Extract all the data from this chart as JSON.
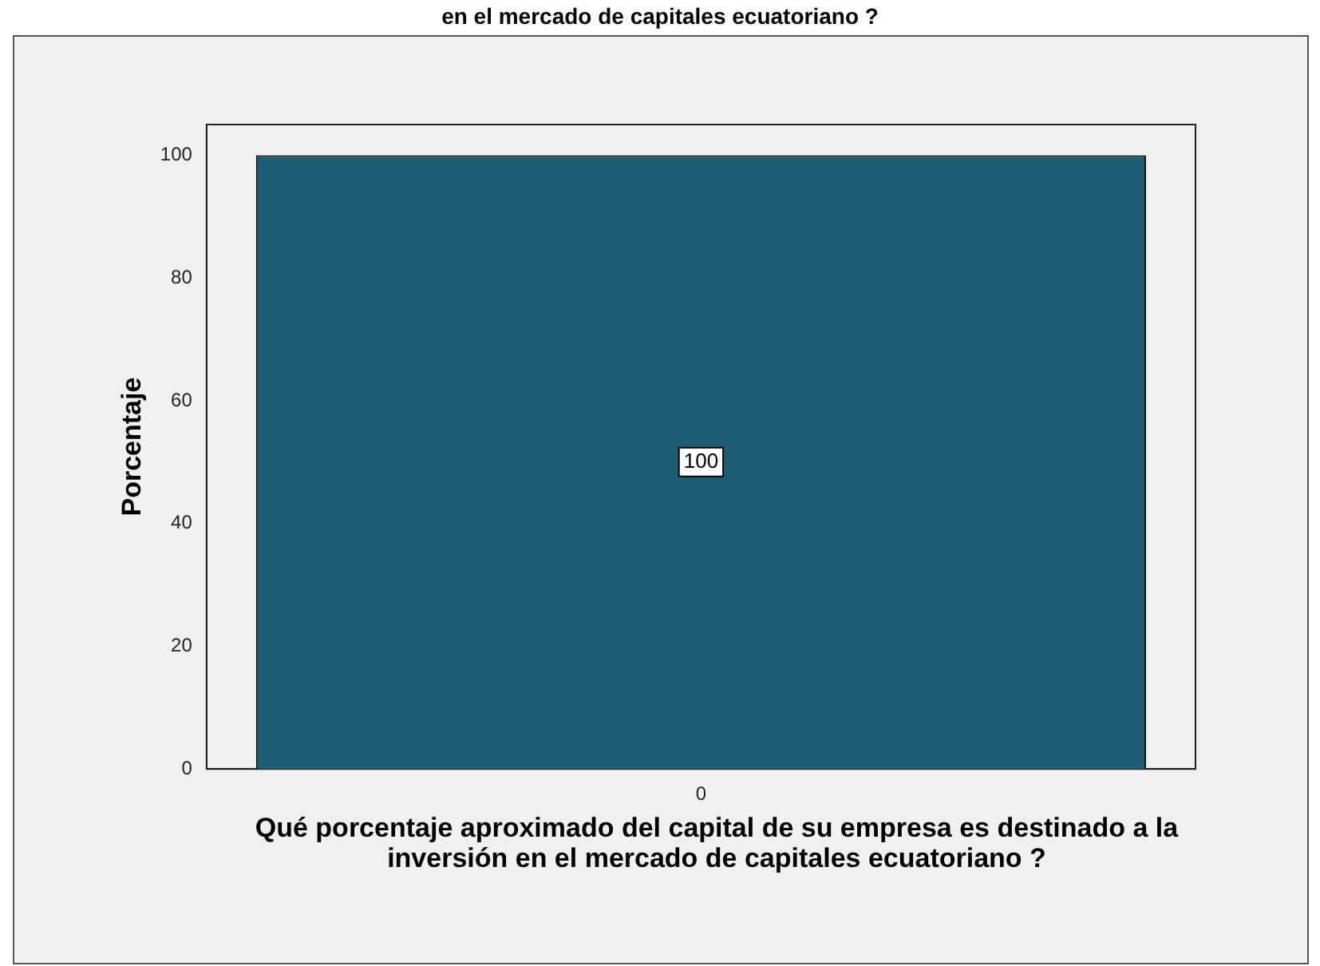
{
  "chart_data": {
    "type": "bar",
    "title": "en el mercado de capitales ecuatoriano ?",
    "xlabel": "Qué porcentaje aproximado del capital de su empresa es destinado a la inversión en el mercado de capitales ecuatoriano ?",
    "ylabel": "Porcentaje",
    "categories": [
      "0"
    ],
    "values": [
      100
    ],
    "color": "#1d5e74",
    "data_labels": true,
    "ylim": [
      0,
      105
    ],
    "yticks": [
      0,
      20,
      40,
      60,
      80,
      100
    ],
    "grid": false,
    "legend": false
  }
}
